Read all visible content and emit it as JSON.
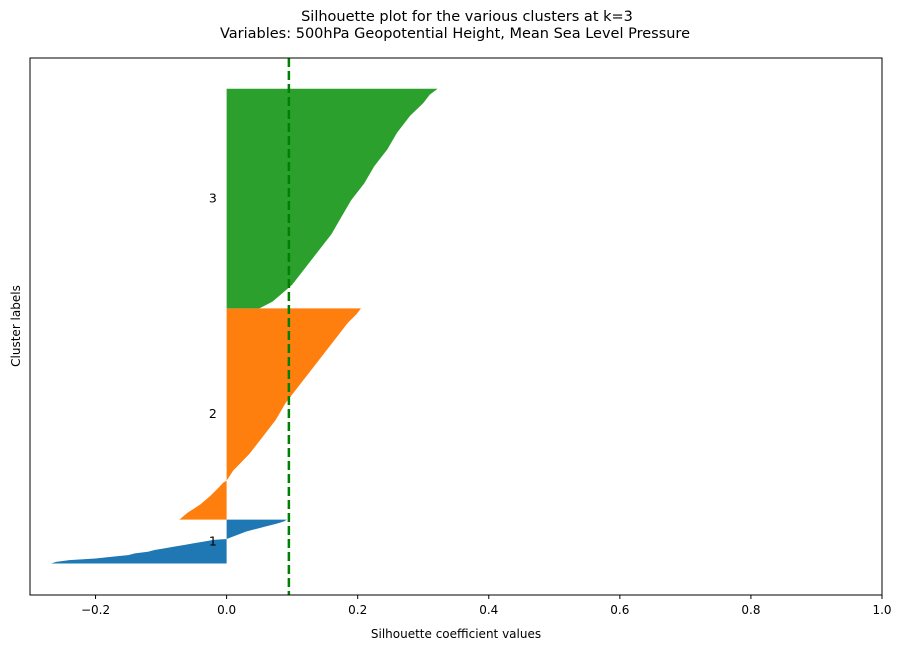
{
  "chart_data": {
    "type": "silhouette",
    "title": [
      "Silhouette plot for the various clusters at k=3",
      "Variables: 500hPa Geopotential Height, Mean Sea Level Pressure"
    ],
    "xlabel": "Silhouette coefficient values",
    "ylabel": "Cluster labels",
    "xlim": [
      -0.3,
      1.0
    ],
    "xticks": [
      -0.2,
      0.0,
      0.2,
      0.4,
      0.6,
      0.8,
      1.0
    ],
    "xtick_labels": [
      "−0.2",
      "0.0",
      "0.2",
      "0.4",
      "0.6",
      "0.8",
      "1.0"
    ],
    "yticks": [],
    "average_silhouette_score": 0.095,
    "average_line_color": "#008000",
    "sample_count_range": [
      0,
      580
    ],
    "clusters": [
      {
        "label": "1",
        "color": "#1f77b4",
        "sample_range": [
          10,
          62
        ],
        "profile": [
          [
            10,
            -0.268
          ],
          [
            12,
            -0.26
          ],
          [
            14,
            -0.24
          ],
          [
            16,
            -0.2
          ],
          [
            18,
            -0.175
          ],
          [
            20,
            -0.15
          ],
          [
            22,
            -0.14
          ],
          [
            24,
            -0.12
          ],
          [
            26,
            -0.11
          ],
          [
            28,
            -0.095
          ],
          [
            30,
            -0.08
          ],
          [
            32,
            -0.065
          ],
          [
            34,
            -0.05
          ],
          [
            36,
            -0.035
          ],
          [
            38,
            -0.02
          ],
          [
            39,
            0.0
          ],
          [
            42,
            0.01
          ],
          [
            45,
            0.02
          ],
          [
            48,
            0.03
          ],
          [
            50,
            0.04
          ],
          [
            52,
            0.05
          ],
          [
            54,
            0.06
          ],
          [
            56,
            0.07
          ],
          [
            58,
            0.08
          ],
          [
            60,
            0.088
          ],
          [
            62,
            0.092
          ]
        ]
      },
      {
        "label": "2",
        "color": "#ff7f0e",
        "sample_range": [
          62,
          312
        ],
        "profile": [
          [
            62,
            -0.072
          ],
          [
            70,
            -0.06
          ],
          [
            80,
            -0.04
          ],
          [
            90,
            -0.025
          ],
          [
            100,
            -0.012
          ],
          [
            106,
            -0.005
          ],
          [
            108,
            0.0
          ],
          [
            120,
            0.01
          ],
          [
            140,
            0.035
          ],
          [
            160,
            0.055
          ],
          [
            180,
            0.075
          ],
          [
            200,
            0.09
          ],
          [
            220,
            0.11
          ],
          [
            240,
            0.13
          ],
          [
            260,
            0.15
          ],
          [
            280,
            0.17
          ],
          [
            295,
            0.185
          ],
          [
            305,
            0.198
          ],
          [
            312,
            0.205
          ]
        ]
      },
      {
        "label": "3",
        "color": "#2ca02c",
        "sample_range": [
          312,
          572
        ],
        "profile": [
          [
            312,
            0.05
          ],
          [
            320,
            0.07
          ],
          [
            330,
            0.085
          ],
          [
            340,
            0.1
          ],
          [
            360,
            0.12
          ],
          [
            380,
            0.14
          ],
          [
            400,
            0.16
          ],
          [
            420,
            0.175
          ],
          [
            440,
            0.19
          ],
          [
            460,
            0.21
          ],
          [
            480,
            0.225
          ],
          [
            500,
            0.245
          ],
          [
            520,
            0.26
          ],
          [
            540,
            0.28
          ],
          [
            555,
            0.3
          ],
          [
            565,
            0.31
          ],
          [
            572,
            0.322
          ]
        ]
      }
    ]
  }
}
